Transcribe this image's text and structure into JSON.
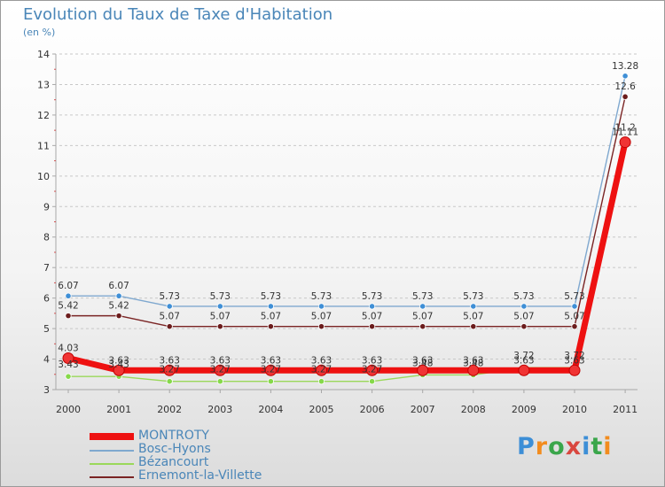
{
  "title": "Evolution du Taux de Taxe d'Habitation",
  "unit": "(en %)",
  "logo": {
    "text": "Proxiti"
  },
  "colors": {
    "axis": "#a8a8a8",
    "tick_text": "#333333",
    "grid": "#c8c8c8",
    "title": "#4a86b8"
  },
  "chart_data": {
    "type": "line",
    "title": "Evolution du Taux de Taxe d'Habitation",
    "ylabel": "(en %)",
    "xlabel": "",
    "x": [
      "2000",
      "2001",
      "2002",
      "2003",
      "2004",
      "2005",
      "2006",
      "2007",
      "2008",
      "2009",
      "2010",
      "2011"
    ],
    "ylim": [
      3,
      14
    ],
    "yticks": [
      "3",
      "4",
      "5",
      "6",
      "7",
      "8",
      "9",
      "10",
      "11",
      "12",
      "13",
      "14"
    ],
    "grid": "horizontal dashed",
    "legend_position": "bottom-left",
    "series": [
      {
        "name": "MONTROTY",
        "color": "#ee1111",
        "marker_color": "#f03434",
        "values": [
          4.03,
          3.63,
          3.63,
          3.63,
          3.63,
          3.63,
          3.63,
          3.63,
          3.63,
          3.63,
          3.63,
          11.11
        ],
        "labels": [
          "4.03",
          "3.63",
          "3.63",
          "3.63",
          "3.63",
          "3.63",
          "3.63",
          "3.63",
          "3.63",
          "3.63",
          "3.63",
          "11.11"
        ]
      },
      {
        "name": "Bosc-Hyons",
        "color": "#7fa8cf",
        "marker_color": "#3f8fd6",
        "values": [
          6.07,
          6.07,
          5.73,
          5.73,
          5.73,
          5.73,
          5.73,
          5.73,
          5.73,
          5.73,
          5.73,
          13.28
        ],
        "labels": [
          "6.07",
          "6.07",
          "5.73",
          "5.73",
          "5.73",
          "5.73",
          "5.73",
          "5.73",
          "5.73",
          "5.73",
          "5.73",
          "13.28"
        ]
      },
      {
        "name": "Bézancourt",
        "color": "#9ad85a",
        "marker_color": "#86d94a",
        "values": [
          3.43,
          3.43,
          3.27,
          3.27,
          3.27,
          3.27,
          3.27,
          3.48,
          3.48,
          3.72,
          3.72,
          11.2
        ],
        "labels": [
          "3.43",
          "3.43",
          "3.27",
          "3.27",
          "3.27",
          "3.27",
          "3.27",
          "3.48",
          "3.48",
          "3.72",
          "3.72",
          "11.2"
        ]
      },
      {
        "name": "Ernemont-la-Villette",
        "color": "#7a2424",
        "marker_color": "#6b1c1c",
        "values": [
          5.42,
          5.42,
          5.07,
          5.07,
          5.07,
          5.07,
          5.07,
          5.07,
          5.07,
          5.07,
          5.07,
          12.6
        ],
        "labels": [
          "5.42",
          "5.42",
          "5.07",
          "5.07",
          "5.07",
          "5.07",
          "5.07",
          "5.07",
          "5.07",
          "5.07",
          "5.07",
          "12.6"
        ]
      }
    ]
  }
}
